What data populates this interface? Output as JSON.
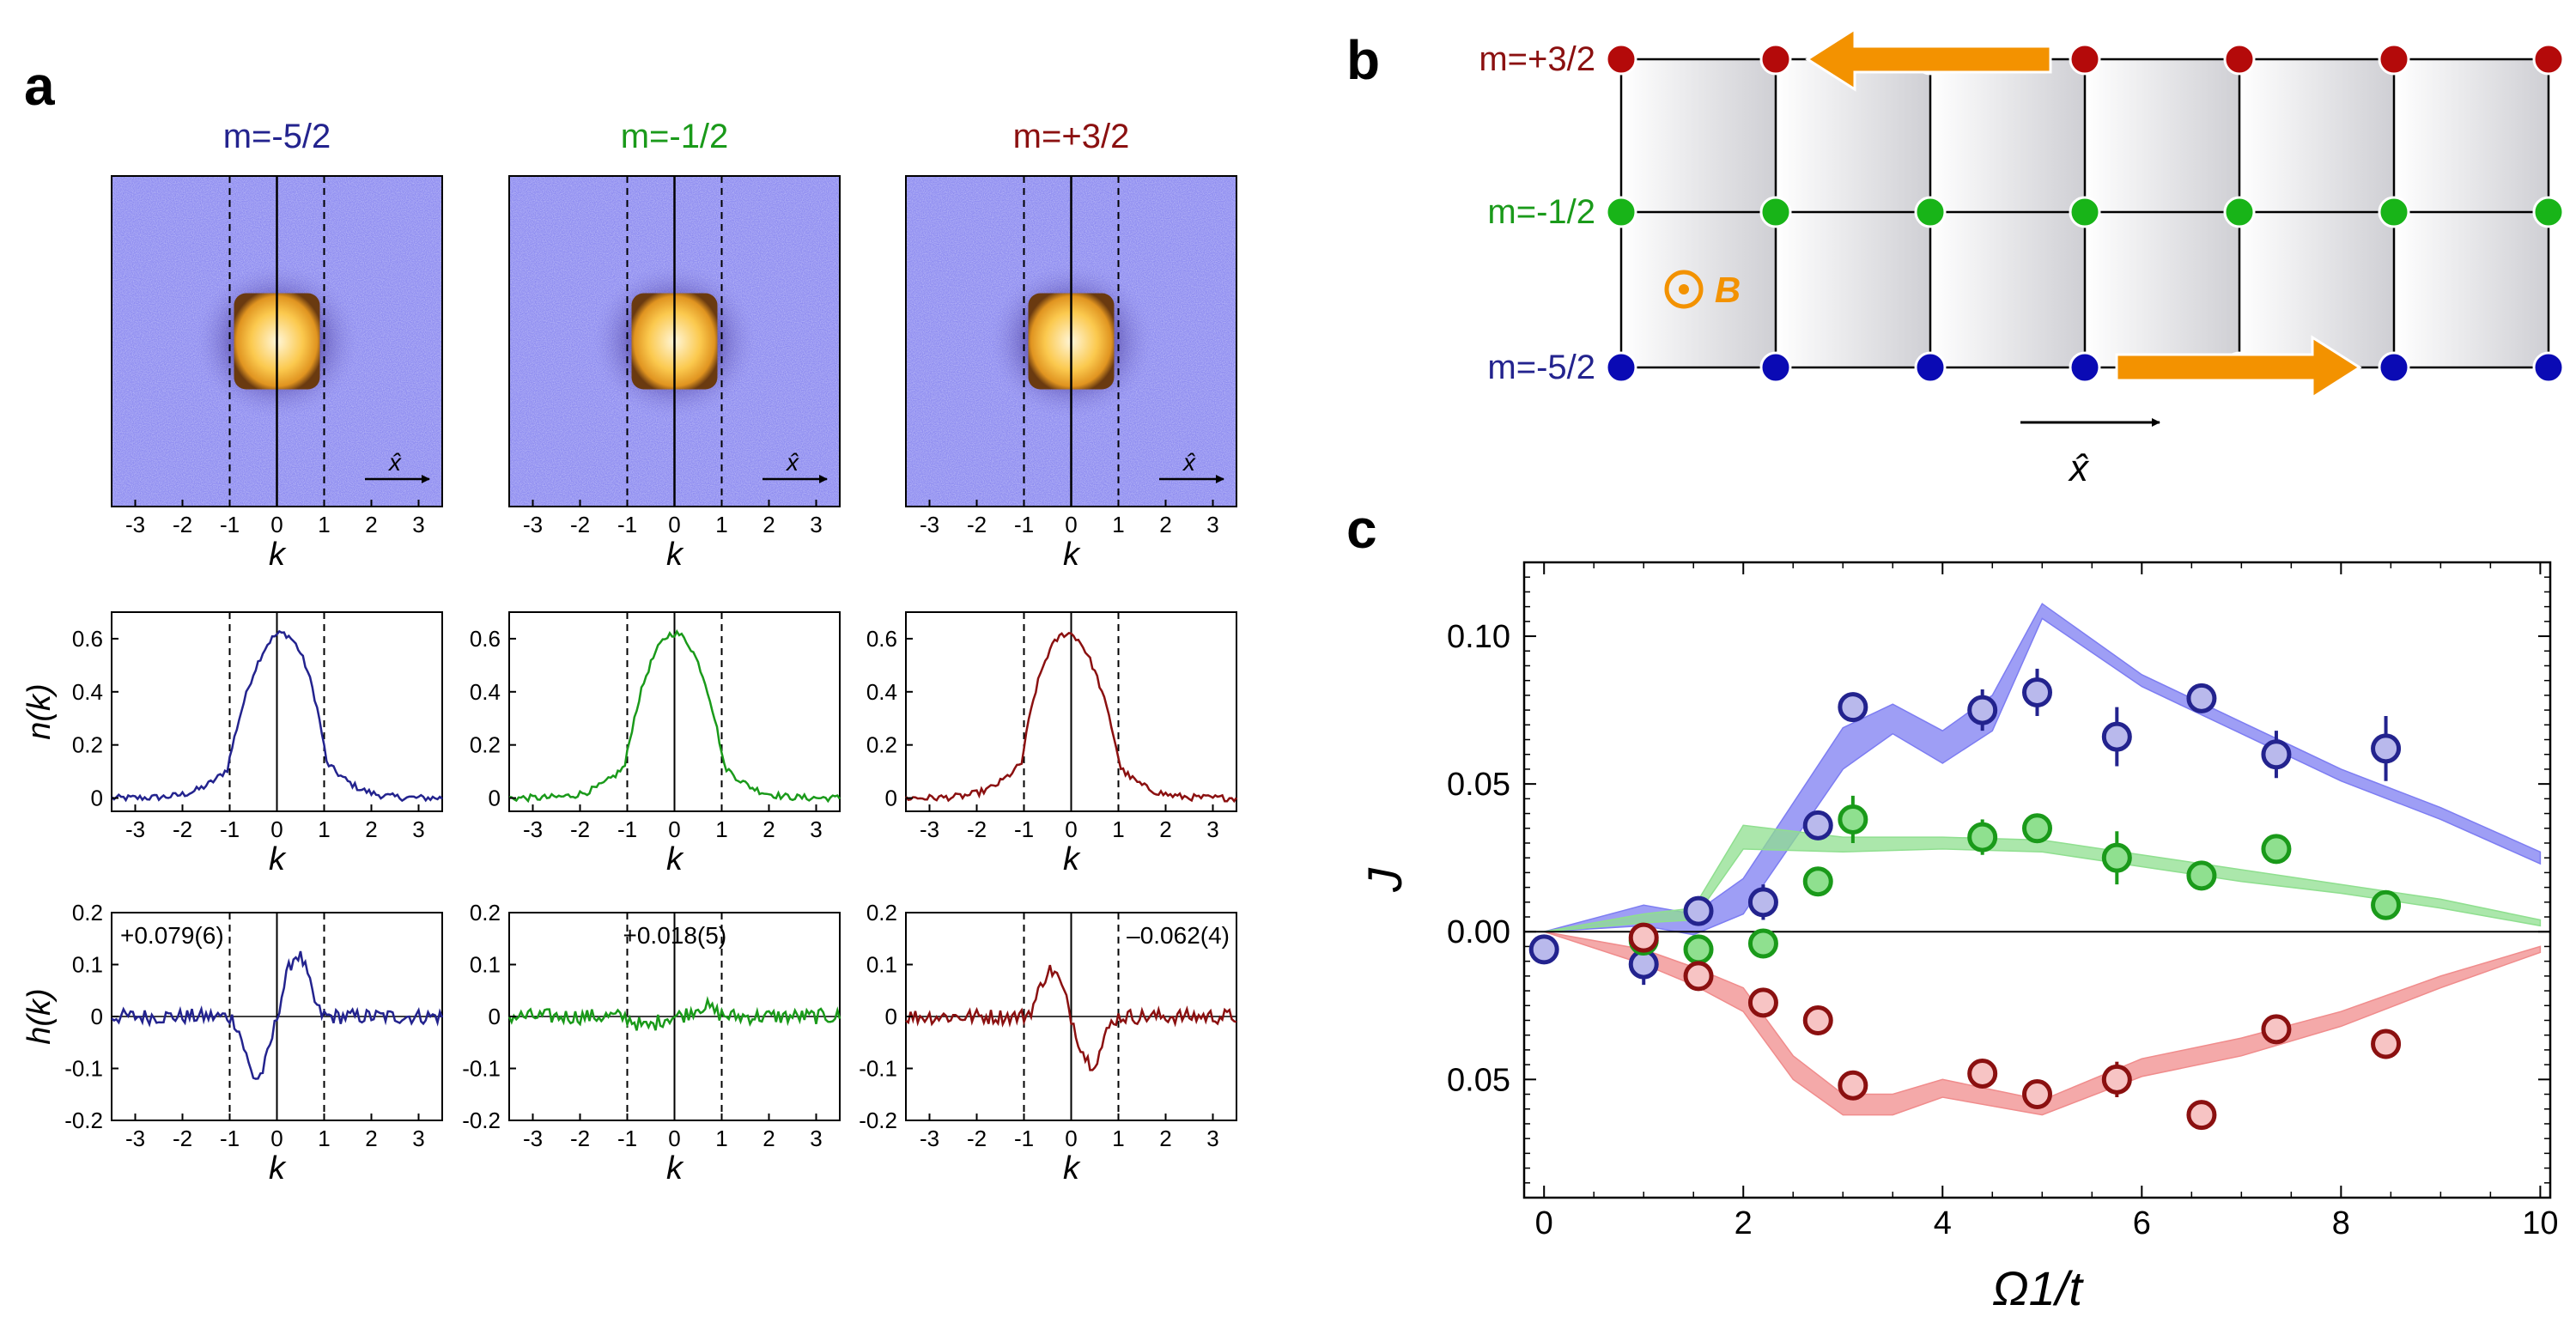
{
  "panel_letters": {
    "a": "a",
    "b": "b",
    "c": "c"
  },
  "colors": {
    "blue": "#23238e",
    "green": "#1a9a1a",
    "red": "#8b1010",
    "orange": "#f39200",
    "lattice_blue": "#0a0ab4",
    "lattice_green": "#18b418",
    "lattice_red": "#b40a0a",
    "band_blue": "#7d7df2",
    "band_green": "#8fdf8f",
    "band_red": "#f08c8c",
    "marker_blue": "#b9b9ec",
    "marker_green": "#8fe08f",
    "marker_red": "#f7c4c4"
  },
  "panel_a": {
    "columns": [
      {
        "title": "m=-5/2",
        "color": "#23238e",
        "h_label": "+0.079(6)"
      },
      {
        "title": "m=-1/2",
        "color": "#1a9a1a",
        "h_label": "+0.018(5)"
      },
      {
        "title": "m=+3/2",
        "color": "#8b1010",
        "h_label": "–0.062(4)"
      }
    ],
    "xhat": "x̂",
    "xlabel": "k",
    "n_ylabel": "n(k)",
    "h_ylabel": "h(k)",
    "x_ticks": [
      "-3",
      "-2",
      "-1",
      "0",
      "1",
      "2",
      "3"
    ],
    "x_tick_values": [
      -3,
      -2,
      -1,
      0,
      1,
      2,
      3
    ],
    "n_ticks": [
      "0",
      "0.2",
      "0.4",
      "0.6"
    ],
    "n_tick_values": [
      0,
      0.2,
      0.4,
      0.6
    ],
    "h_ticks": [
      "0.2",
      "0.1",
      "0",
      "-0.1",
      "-0.2"
    ],
    "h_tick_values": [
      0.2,
      0.1,
      0,
      -0.1,
      -0.2
    ],
    "k_range": [
      -3.5,
      3.5
    ],
    "n_range": [
      -0.05,
      0.7
    ],
    "h_range": [
      -0.2,
      0.2
    ],
    "dashed_lines_at": [
      -1,
      1
    ]
  },
  "panel_b": {
    "state_labels": [
      "m=+3/2",
      "m=-1/2",
      "m=-5/2"
    ],
    "state_colors": [
      "#8b1010",
      "#1a9a1a",
      "#23238e"
    ],
    "field_symbol": "⊙",
    "field_label": "B",
    "xhat": "x̂",
    "columns": 7
  },
  "chart_data": {
    "type": "scatter",
    "xlabel": "Ω1/t",
    "ylabel": "J",
    "xlim": [
      -0.2,
      10.1
    ],
    "ylim": [
      -0.09,
      0.125
    ],
    "x_ticks": [
      0,
      2,
      4,
      6,
      8,
      10
    ],
    "y_ticks": [
      0.1,
      0.05,
      0.0,
      -0.05
    ],
    "y_tick_labels": [
      "0.10",
      "0.05",
      "0.00",
      "0.05"
    ],
    "series": [
      {
        "name": "m=-5/2",
        "x": [
          0,
          1,
          1.55,
          2.2,
          2.75,
          3.1,
          4.4,
          4.95,
          5.75,
          6.6,
          7.35,
          8.45
        ],
        "y": [
          -0.006,
          -0.011,
          0.007,
          0.01,
          0.036,
          0.076,
          0.075,
          0.081,
          0.066,
          0.079,
          0.06,
          0.062
        ],
        "err": [
          0.003,
          0.007,
          0.005,
          0.006,
          0.005,
          0.005,
          0.007,
          0.008,
          0.01,
          0.005,
          0.008,
          0.011
        ]
      },
      {
        "name": "m=-1/2",
        "x": [
          1,
          1.55,
          2.2,
          2.75,
          3.1,
          4.4,
          4.95,
          5.75,
          6.6,
          7.35,
          8.45
        ],
        "y": [
          -0.003,
          -0.006,
          -0.004,
          0.017,
          0.038,
          0.032,
          0.035,
          0.025,
          0.019,
          0.028,
          0.009
        ],
        "err": [
          0.004,
          0.004,
          0.004,
          0.003,
          0.008,
          0.006,
          0.004,
          0.009,
          0.005,
          0.004,
          0.003
        ]
      },
      {
        "name": "m=+3/2",
        "x": [
          1,
          1.55,
          2.2,
          2.75,
          3.1,
          4.4,
          4.95,
          5.75,
          6.6,
          7.35,
          8.45
        ],
        "y": [
          -0.002,
          -0.015,
          -0.024,
          -0.03,
          -0.052,
          -0.048,
          -0.055,
          -0.05,
          -0.062,
          -0.033,
          -0.038
        ],
        "err": [
          0.004,
          0.004,
          0.004,
          0.003,
          0.003,
          0.003,
          0.003,
          0.006,
          0.003,
          0.003,
          0.005
        ]
      }
    ],
    "bands": [
      {
        "name": "m=-5/2 theory",
        "x": [
          0,
          1,
          1.5,
          2,
          3,
          3.5,
          4,
          4.5,
          5,
          6,
          7,
          8,
          9,
          10
        ],
        "lo": [
          0,
          0.002,
          -0.001,
          0.006,
          0.055,
          0.067,
          0.057,
          0.068,
          0.106,
          0.083,
          0.067,
          0.051,
          0.038,
          0.023
        ],
        "hi": [
          0,
          0.009,
          0.006,
          0.018,
          0.069,
          0.077,
          0.068,
          0.08,
          0.111,
          0.087,
          0.071,
          0.055,
          0.042,
          0.027
        ]
      },
      {
        "name": "m=-1/2 theory",
        "x": [
          0,
          1,
          1.5,
          2,
          3,
          4,
          5,
          6,
          7,
          8,
          9,
          10
        ],
        "lo": [
          0,
          0.003,
          0.004,
          0.028,
          0.027,
          0.028,
          0.027,
          0.022,
          0.017,
          0.013,
          0.008,
          0.002
        ],
        "hi": [
          0,
          0.006,
          0.008,
          0.036,
          0.032,
          0.032,
          0.031,
          0.026,
          0.021,
          0.016,
          0.011,
          0.004
        ]
      },
      {
        "name": "m=+3/2 theory",
        "x": [
          0,
          1,
          1.5,
          2,
          2.5,
          3,
          3.5,
          4,
          5,
          6,
          7,
          8,
          9,
          10
        ],
        "lo": [
          0,
          -0.011,
          -0.018,
          -0.027,
          -0.05,
          -0.062,
          -0.062,
          -0.056,
          -0.062,
          -0.049,
          -0.042,
          -0.032,
          -0.019,
          -0.007
        ],
        "hi": [
          0,
          -0.006,
          -0.012,
          -0.019,
          -0.042,
          -0.055,
          -0.055,
          -0.05,
          -0.057,
          -0.043,
          -0.036,
          -0.027,
          -0.015,
          -0.005
        ]
      }
    ]
  }
}
